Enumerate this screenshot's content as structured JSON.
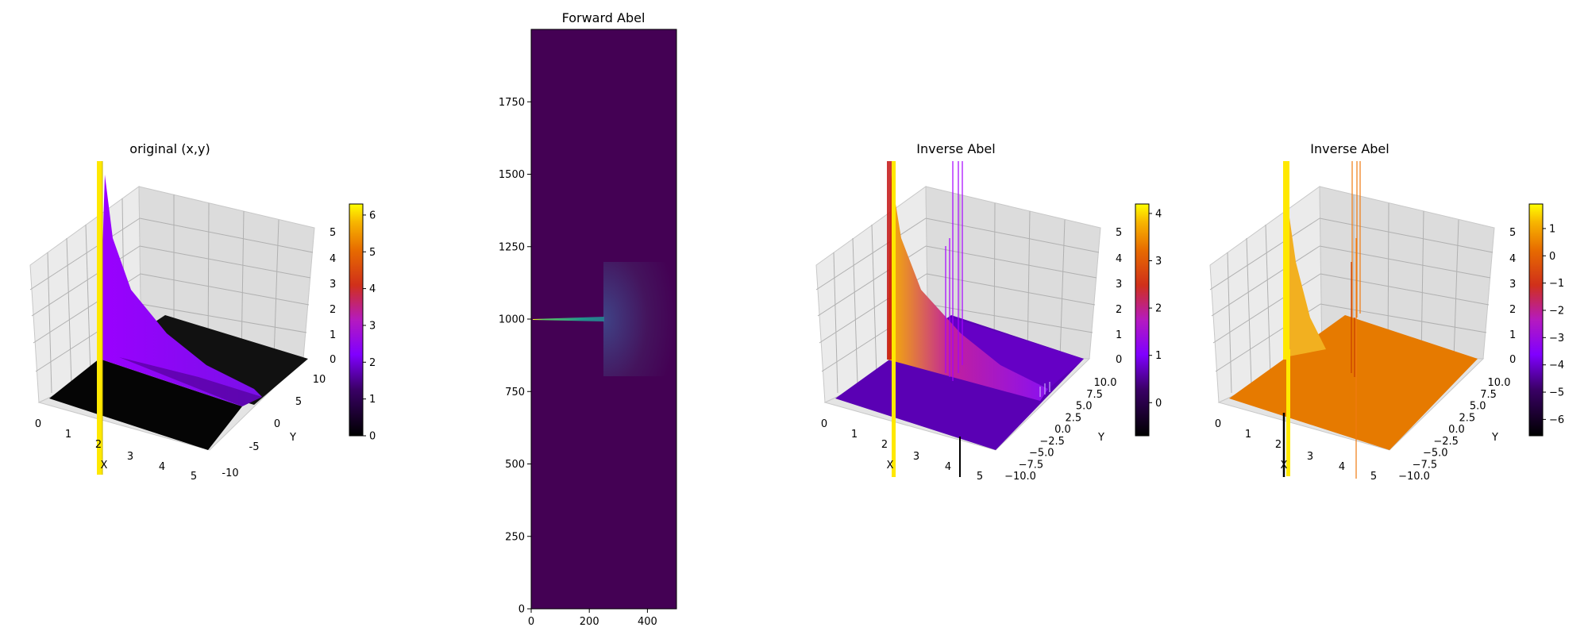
{
  "chart_data": [
    {
      "type": "surface3d",
      "title": "original (x,y)",
      "xlabel": "X",
      "ylabel": "Y",
      "xticks": [
        "0",
        "1",
        "2",
        "3",
        "4",
        "5"
      ],
      "yticks": [
        "-10",
        "-5",
        "0",
        "5",
        "10"
      ],
      "zticks": [
        "0",
        "1",
        "2",
        "3",
        "4",
        "5"
      ],
      "colorbar_ticks": [
        "0",
        "1",
        "2",
        "3",
        "4",
        "5",
        "6"
      ],
      "colorbar_range": [
        0,
        6.3
      ],
      "colormap": "gnuplot",
      "xlim": [
        0,
        5
      ],
      "ylim": [
        -10,
        10
      ],
      "zlim": [
        0,
        5
      ]
    },
    {
      "type": "heatmap",
      "title": "Forward Abel",
      "xticks": [
        "0",
        "200",
        "400"
      ],
      "yticks": [
        "0",
        "250",
        "500",
        "750",
        "1000",
        "1250",
        "1500",
        "1750"
      ],
      "xlim": [
        0,
        500
      ],
      "ylim": [
        0,
        2000
      ],
      "colormap": "viridis",
      "features": {
        "streak": {
          "x": [
            0,
            250
          ],
          "y": 1000,
          "color": "#2bb7a3"
        },
        "glow": {
          "x": [
            250,
            500
          ],
          "y": [
            700,
            1300
          ],
          "color": "#3d3f8a"
        }
      }
    },
    {
      "type": "surface3d",
      "title": "Inverse Abel",
      "xlabel": "X",
      "ylabel": "Y",
      "xticks": [
        "0",
        "1",
        "2",
        "3",
        "4",
        "5"
      ],
      "yticks": [
        "−10.0",
        "−7.5",
        "−5.0",
        "−2.5",
        "0.0",
        "2.5",
        "5.0",
        "7.5",
        "10.0"
      ],
      "zticks": [
        "0",
        "1",
        "2",
        "3",
        "4",
        "5"
      ],
      "colorbar_ticks": [
        "0",
        "1",
        "2",
        "3",
        "4"
      ],
      "colorbar_range": [
        -0.7,
        4.2
      ],
      "colormap": "gnuplot",
      "xlim": [
        0,
        5
      ],
      "ylim": [
        -10,
        10
      ],
      "zlim": [
        0,
        5
      ]
    },
    {
      "type": "surface3d",
      "title": "Inverse Abel",
      "xlabel": "X",
      "ylabel": "Y",
      "xticks": [
        "0",
        "1",
        "2",
        "3",
        "4",
        "5"
      ],
      "yticks": [
        "−10.0",
        "−7.5",
        "−5.0",
        "−2.5",
        "0.0",
        "2.5",
        "5.0",
        "7.5",
        "10.0"
      ],
      "zticks": [
        "0",
        "1",
        "2",
        "3",
        "4",
        "5"
      ],
      "colorbar_ticks": [
        "−6",
        "−5",
        "−4",
        "−3",
        "−2",
        "−1",
        "0",
        "1"
      ],
      "colorbar_range": [
        -6.6,
        1.9
      ],
      "colormap": "gnuplot",
      "xlim": [
        0,
        5
      ],
      "ylim": [
        -10,
        10
      ],
      "zlim": [
        0,
        5
      ]
    }
  ]
}
